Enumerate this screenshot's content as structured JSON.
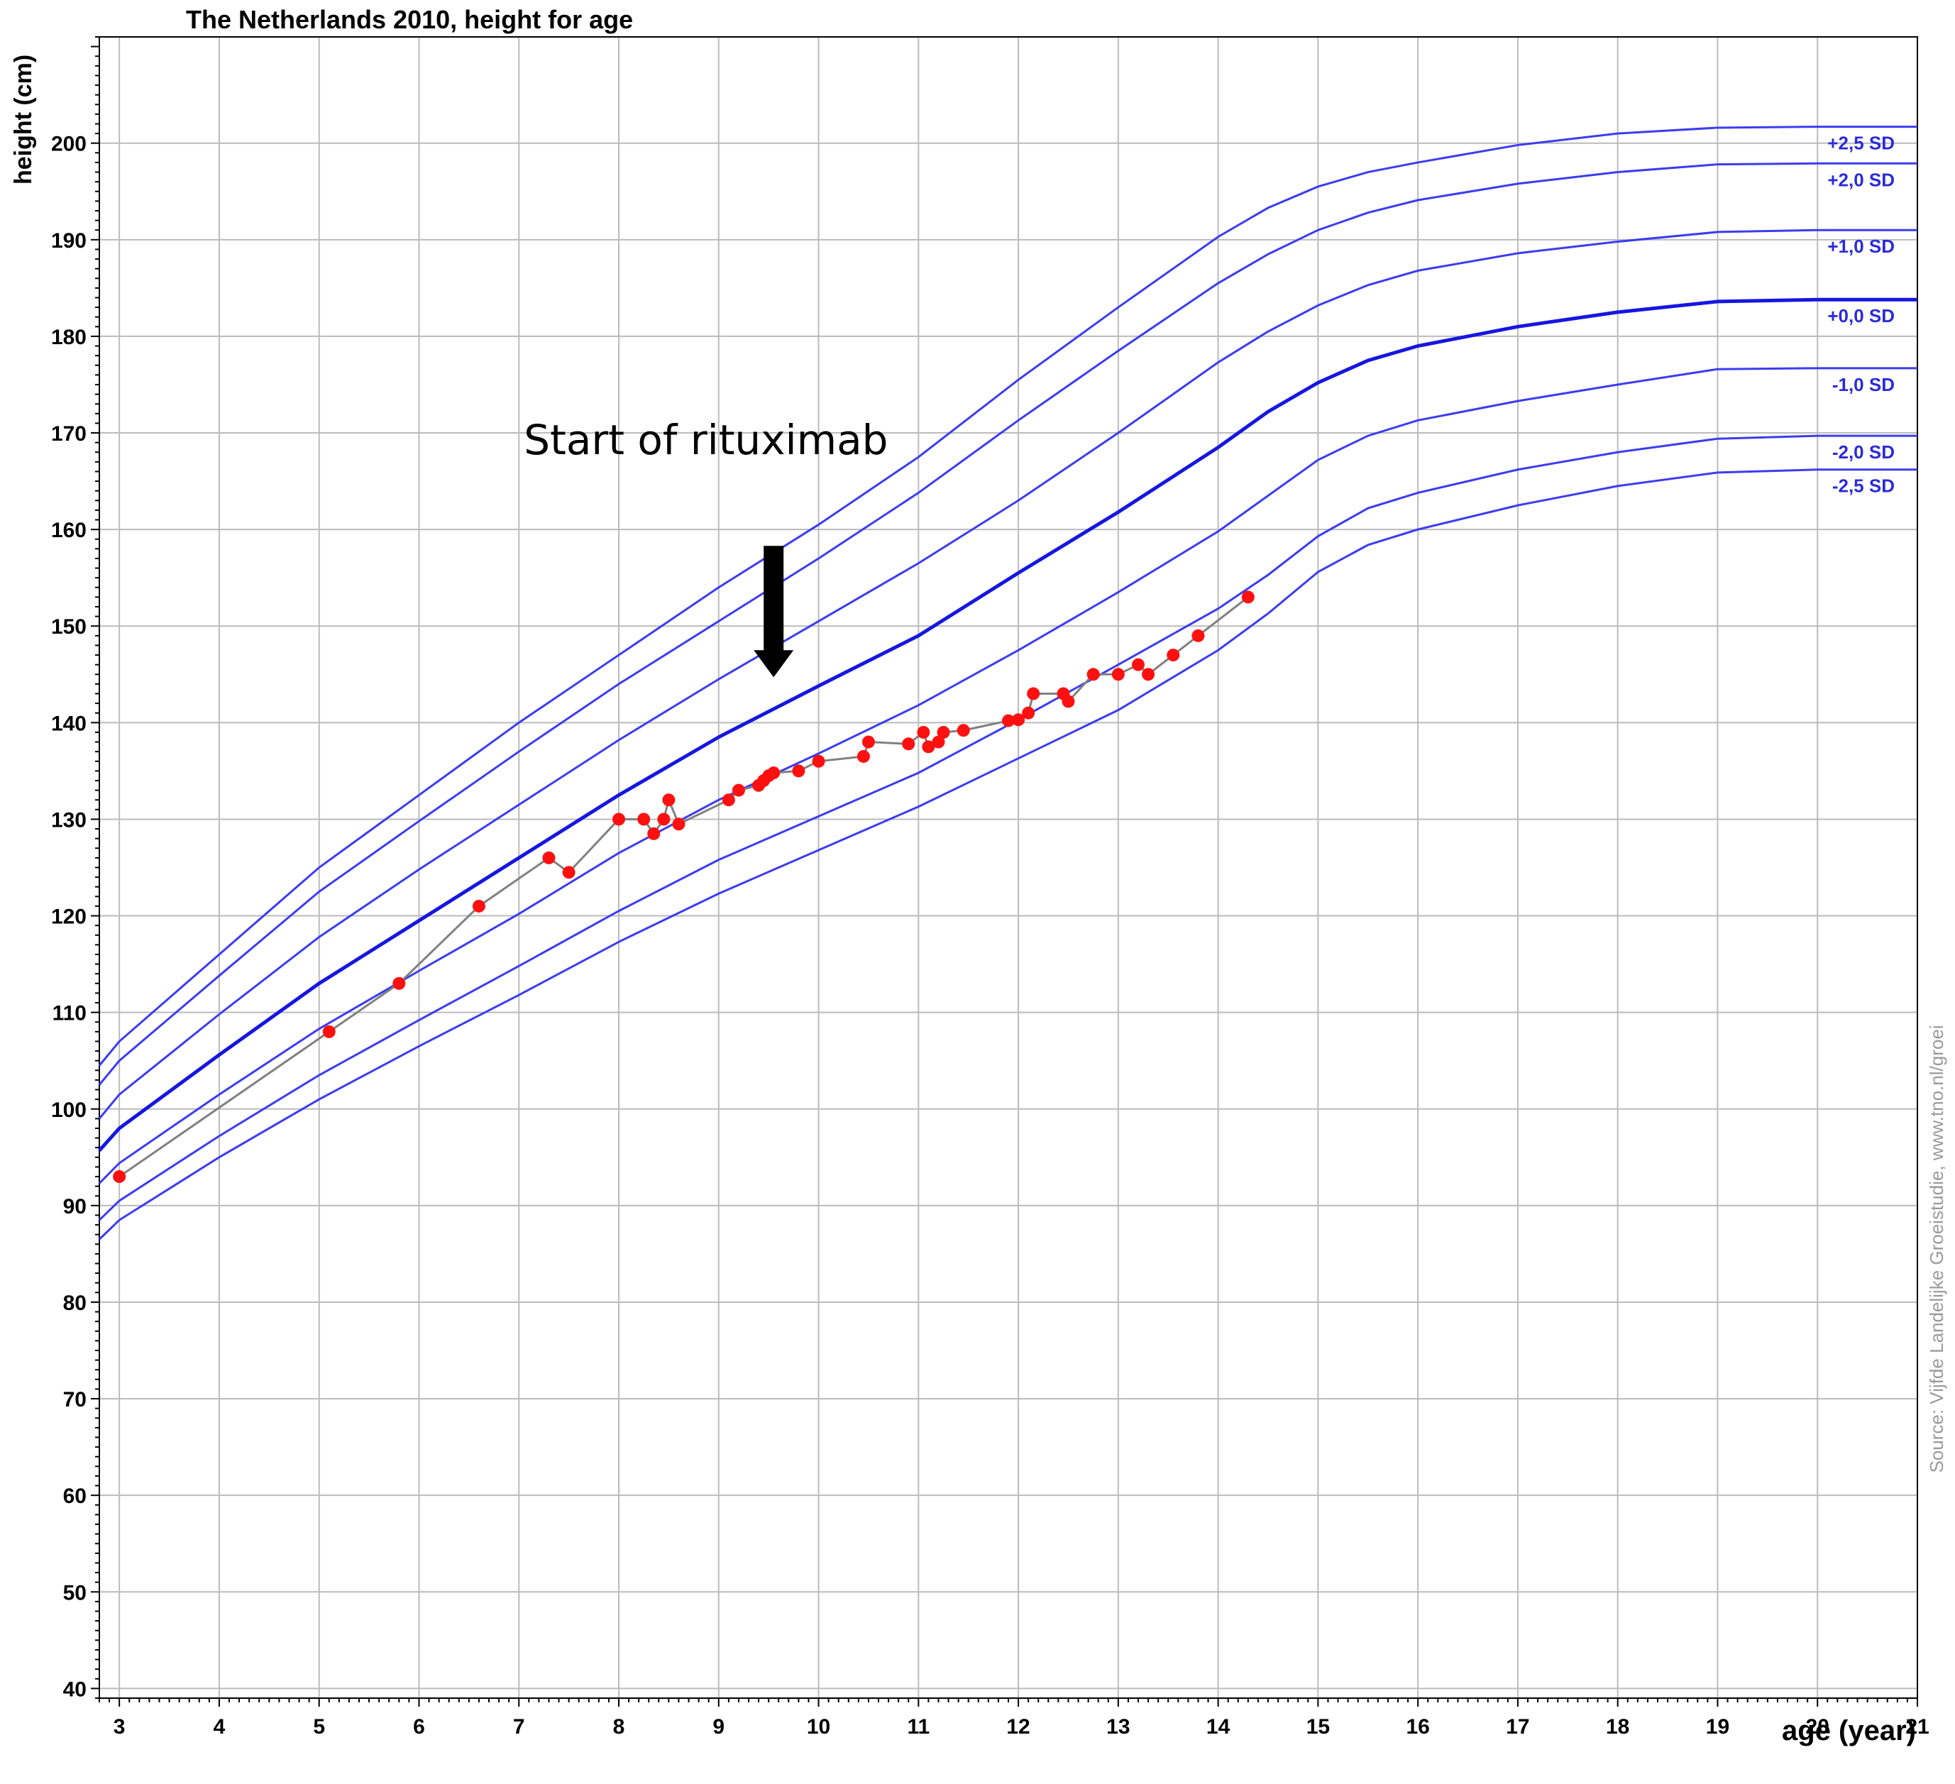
{
  "chart_data": {
    "type": "line",
    "title": "The Netherlands 2010, height for age",
    "xlabel": "age (year)",
    "ylabel": "height (cm)",
    "xlim": [
      2.8,
      21
    ],
    "ylim": [
      39,
      211
    ],
    "x_ticks": [
      3,
      4,
      5,
      6,
      7,
      8,
      9,
      10,
      11,
      12,
      13,
      14,
      15,
      16,
      17,
      18,
      19,
      20,
      21
    ],
    "y_ticks": [
      40,
      50,
      60,
      70,
      80,
      90,
      100,
      110,
      120,
      130,
      140,
      150,
      160,
      170,
      180,
      190,
      200
    ],
    "grid": true,
    "reference_curves": [
      {
        "label": "+2,5 SD",
        "x": [
          2.8,
          3,
          4,
          5,
          6,
          7,
          8,
          9,
          10,
          11,
          12,
          13,
          14,
          14.5,
          15,
          15.5,
          16,
          17,
          18,
          19,
          20,
          21
        ],
        "y": [
          104.5,
          107,
          116,
          125,
          132.5,
          140,
          147,
          154,
          160.5,
          167.5,
          175.5,
          183,
          190.3,
          193.3,
          195.5,
          197,
          198,
          199.8,
          201,
          201.6,
          201.7,
          201.7
        ]
      },
      {
        "label": "+2,0 SD",
        "x": [
          2.8,
          3,
          4,
          5,
          6,
          7,
          8,
          9,
          10,
          11,
          12,
          13,
          14,
          14.5,
          15,
          15.5,
          16,
          17,
          18,
          19,
          20,
          21
        ],
        "y": [
          102.5,
          105,
          113.8,
          122.5,
          129.8,
          137,
          144,
          150.5,
          157,
          163.8,
          171.3,
          178.5,
          185.5,
          188.5,
          191,
          192.8,
          194.1,
          195.8,
          197,
          197.8,
          197.9,
          197.9
        ]
      },
      {
        "label": "+1,0 SD",
        "x": [
          2.8,
          3,
          4,
          5,
          6,
          7,
          8,
          9,
          10,
          11,
          12,
          13,
          14,
          14.5,
          15,
          15.5,
          16,
          17,
          18,
          19,
          20,
          21
        ],
        "y": [
          99,
          101.5,
          109.8,
          117.8,
          124.8,
          131.5,
          138.2,
          144.5,
          150.5,
          156.5,
          163,
          170,
          177.3,
          180.5,
          183.2,
          185.3,
          186.8,
          188.6,
          189.8,
          190.8,
          191,
          191
        ]
      },
      {
        "label": "+0,0 SD",
        "x": [
          2.8,
          3,
          4,
          5,
          6,
          7,
          8,
          9,
          10,
          11,
          12,
          13,
          14,
          14.5,
          15,
          15.5,
          16,
          17,
          18,
          19,
          20,
          21
        ],
        "y": [
          95.7,
          98,
          105.6,
          113,
          119.5,
          126,
          132.5,
          138.5,
          143.8,
          149,
          155.5,
          161.8,
          168.5,
          172.2,
          175.2,
          177.5,
          179,
          181,
          182.5,
          183.6,
          183.8,
          183.8
        ]
      },
      {
        "label": "-1,0 SD",
        "x": [
          2.8,
          3,
          4,
          5,
          6,
          7,
          8,
          9,
          10,
          11,
          12,
          13,
          14,
          14.5,
          15,
          15.5,
          16,
          17,
          18,
          19,
          20,
          21
        ],
        "y": [
          92.3,
          94.4,
          101.5,
          108.3,
          114.3,
          120.2,
          126.5,
          132,
          136.8,
          141.8,
          147.5,
          153.5,
          159.8,
          163.5,
          167.2,
          169.7,
          171.3,
          173.3,
          175,
          176.6,
          176.7,
          176.7
        ]
      },
      {
        "label": "-2,0 SD",
        "x": [
          2.8,
          3,
          4,
          5,
          6,
          7,
          8,
          9,
          10,
          11,
          12,
          13,
          14,
          14.5,
          15,
          15.5,
          16,
          17,
          18,
          19,
          20,
          21
        ],
        "y": [
          88.5,
          90.5,
          97.2,
          103.5,
          109.2,
          114.8,
          120.5,
          125.8,
          130.3,
          134.8,
          140.3,
          146,
          151.8,
          155.3,
          159.3,
          162.2,
          163.8,
          166.2,
          168,
          169.4,
          169.7,
          169.7
        ]
      },
      {
        "label": "-2,5 SD",
        "x": [
          2.8,
          3,
          4,
          5,
          6,
          7,
          8,
          9,
          10,
          11,
          12,
          13,
          14,
          14.5,
          15,
          15.5,
          16,
          17,
          18,
          19,
          20,
          21
        ],
        "y": [
          86.5,
          88.5,
          95,
          101,
          106.5,
          111.8,
          117.3,
          122.3,
          126.8,
          131.3,
          136.3,
          141.3,
          147.5,
          151.3,
          155.6,
          158.4,
          160,
          162.5,
          164.5,
          165.9,
          166.2,
          166.2
        ]
      }
    ],
    "series": [
      {
        "x": [
          3.0,
          5.1,
          5.8,
          6.6,
          7.3,
          7.5,
          8.0,
          8.25,
          8.35,
          8.45,
          8.5,
          8.6,
          9.1,
          9.2,
          9.4,
          9.45,
          9.5,
          9.55,
          9.8,
          10.0,
          10.45,
          10.5,
          10.9,
          11.05,
          11.1,
          11.2,
          11.25,
          11.45,
          11.9,
          12.0,
          12.1,
          12.15,
          12.45,
          12.5,
          12.75,
          13.0,
          13.2,
          13.3,
          13.55,
          13.8,
          14.3
        ],
        "y": [
          93,
          108,
          113,
          121,
          126,
          124.5,
          130,
          130,
          128.5,
          130,
          132,
          129.5,
          132,
          133,
          133.5,
          134,
          134.5,
          134.8,
          135,
          136,
          136.5,
          138,
          137.8,
          139,
          137.5,
          138,
          139,
          139.2,
          140.2,
          140.3,
          141,
          143,
          143,
          142.2,
          145,
          145,
          146,
          145,
          147,
          149,
          153
        ]
      }
    ],
    "annotation": "Start of rituximab",
    "annotation_x": 9.55,
    "source": "Source: Vijfde Landelijke Groeistudie, www.tno.nl/groei"
  },
  "colors": {
    "sd_line": "#3c3cf0",
    "median_line": "#1616e0",
    "sd_label": "#2b2bd9",
    "point": "#ff1010",
    "connector": "#808080",
    "grid": "#bbbbbb"
  }
}
